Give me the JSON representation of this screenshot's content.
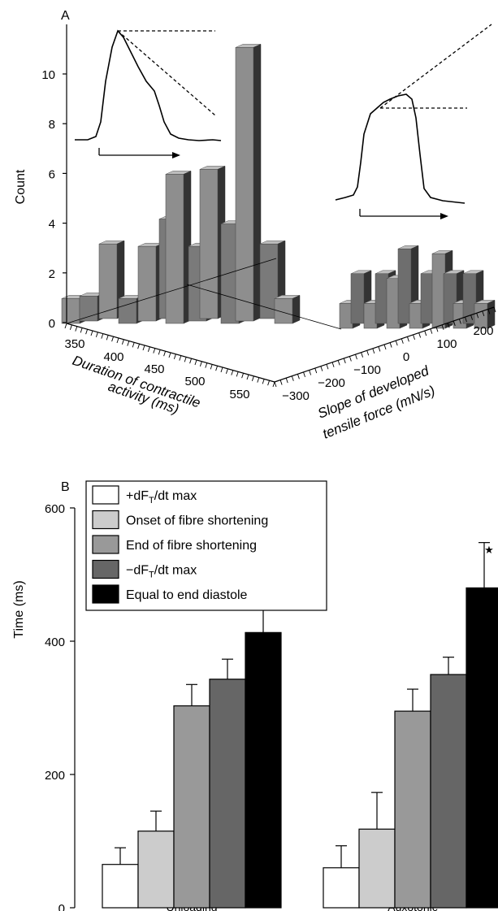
{
  "chart_data": [
    {
      "panel_label": "A",
      "type": "bar",
      "subtype": "3d-histogram",
      "ylabel": "Count",
      "xlabel_line1": "Duration of contractile",
      "xlabel_line2": "activity (ms)",
      "zlabel_line1": "Slope of developed",
      "zlabel_line2": "tensile force (mN/s)",
      "x_ticks": [
        "350",
        "400",
        "450",
        "500",
        "550"
      ],
      "z_ticks": [
        "−300",
        "−200",
        "−100",
        "0",
        "100",
        "200"
      ],
      "y_ticks": [
        "0",
        "2",
        "4",
        "6",
        "8",
        "10"
      ],
      "ylim": [
        0,
        11.5
      ],
      "duration_bins_ms": [
        320,
        335,
        350,
        365,
        380,
        395,
        410,
        425,
        440,
        455,
        470,
        485,
        500
      ],
      "counts_unloading": [
        1,
        1,
        3,
        1,
        3,
        4,
        6,
        3,
        6,
        4,
        11,
        3,
        1
      ],
      "counts_auxotonic": [
        1,
        2,
        1,
        2,
        2,
        3,
        1,
        2,
        3,
        2,
        1,
        2,
        1
      ],
      "inset_traces": [
        "unloading-force-trace",
        "auxotonic-force-trace"
      ]
    },
    {
      "panel_label": "B",
      "type": "bar",
      "ylabel": "Time (ms)",
      "ylim": [
        0,
        600
      ],
      "y_ticks": [
        "0",
        "200",
        "400",
        "600"
      ],
      "categories": [
        "Unloading",
        "Auxotonic"
      ],
      "series": [
        {
          "name_main": "+dF",
          "name_sub": "T",
          "name_tail": "/dt max",
          "color": "#ffffff",
          "values": [
            65,
            60
          ],
          "errors": [
            25,
            33
          ]
        },
        {
          "name_main": "Onset of fibre shortening",
          "name_sub": "",
          "name_tail": "",
          "color": "#cccccc",
          "values": [
            115,
            118
          ],
          "errors": [
            30,
            55
          ]
        },
        {
          "name_main": "End of fibre shortening",
          "name_sub": "",
          "name_tail": "",
          "color": "#999999",
          "values": [
            303,
            295
          ],
          "errors": [
            32,
            33
          ]
        },
        {
          "name_main": "−dF",
          "name_sub": "T",
          "name_tail": "/dt max",
          "color": "#666666",
          "values": [
            343,
            350
          ],
          "errors": [
            30,
            26
          ]
        },
        {
          "name_main": "Equal to end diastole",
          "name_sub": "",
          "name_tail": "",
          "color": "#000000",
          "values": [
            413,
            480
          ],
          "errors": [
            40,
            68
          ]
        }
      ],
      "annotation": "★"
    }
  ]
}
